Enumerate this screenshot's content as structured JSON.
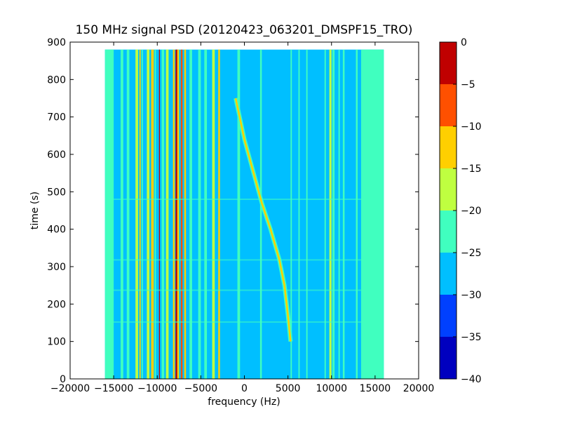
{
  "chart_data": {
    "type": "heatmap",
    "title": "150 MHz signal PSD (20120423_063201_DMSPF15_TRO)",
    "xlabel": "frequency (Hz)",
    "ylabel": "time (s)",
    "xlim": [
      -20000,
      20000
    ],
    "ylim": [
      0,
      900
    ],
    "xticks": [
      -20000,
      -15000,
      -10000,
      -5000,
      0,
      5000,
      10000,
      15000,
      20000
    ],
    "yticks": [
      0,
      100,
      200,
      300,
      400,
      500,
      600,
      700,
      800,
      900
    ],
    "data_extent": {
      "x": [
        -16000,
        16000
      ],
      "y": [
        0,
        880
      ]
    },
    "grid": false,
    "colorbar": {
      "range": [
        -40,
        0
      ],
      "ticks": [
        0,
        -5,
        -10,
        -15,
        -20,
        -25,
        -30,
        -35,
        -40
      ],
      "levels": [
        {
          "from": -40,
          "to": -35,
          "color": "#0000bf"
        },
        {
          "from": -35,
          "to": -30,
          "color": "#0040ff"
        },
        {
          "from": -30,
          "to": -25,
          "color": "#00bfff"
        },
        {
          "from": -25,
          "to": -20,
          "color": "#40ffbf"
        },
        {
          "from": -20,
          "to": -15,
          "color": "#bfff40"
        },
        {
          "from": -15,
          "to": -10,
          "color": "#ffcf00"
        },
        {
          "from": -10,
          "to": -5,
          "color": "#ff5000"
        },
        {
          "from": -5,
          "to": 0,
          "color": "#c00000"
        }
      ]
    },
    "background_level": -27.5,
    "vertical_lines": [
      {
        "x": -16000,
        "x2": -15000,
        "level": -22.5
      },
      {
        "x": -14200,
        "x2": -13900,
        "level": -22.5
      },
      {
        "x": -13500,
        "x2": -13200,
        "level": -22.5
      },
      {
        "x": -12500,
        "x2": -12200,
        "level": -17.5
      },
      {
        "x": -12050,
        "x2": -11900,
        "level": -12.5
      },
      {
        "x": -11800,
        "x2": -11650,
        "level": -22.5
      },
      {
        "x": -11200,
        "x2": -10900,
        "level": -17.5
      },
      {
        "x": -10700,
        "x2": -10400,
        "level": -12.5
      },
      {
        "x": -10300,
        "x2": -10150,
        "level": -22.5
      },
      {
        "x": -9800,
        "x2": -9700,
        "level": -2.5
      },
      {
        "x": -9500,
        "x2": -9200,
        "level": -22.5
      },
      {
        "x": -9000,
        "x2": -8700,
        "level": -17.5
      },
      {
        "x": -8200,
        "x2": -8000,
        "level": -12.5
      },
      {
        "x": -7900,
        "x2": -7700,
        "level": -2.5
      },
      {
        "x": -7700,
        "x2": -7500,
        "level": -12.5
      },
      {
        "x": -7300,
        "x2": -7100,
        "level": -7.5
      },
      {
        "x": -6900,
        "x2": -6700,
        "level": -12.5
      },
      {
        "x": -6300,
        "x2": -6000,
        "level": -22.5
      },
      {
        "x": -5300,
        "x2": -5000,
        "level": -22.5
      },
      {
        "x": -4600,
        "x2": -4300,
        "level": -22.5
      },
      {
        "x": -3700,
        "x2": -3400,
        "level": -17.5
      },
      {
        "x": -3000,
        "x2": -2800,
        "level": -12.5
      },
      {
        "x": -800,
        "x2": -500,
        "level": -22.5
      },
      {
        "x": 1800,
        "x2": 2000,
        "level": -22.5
      },
      {
        "x": 5300,
        "x2": 5450,
        "level": -22.5
      },
      {
        "x": 6200,
        "x2": 6350,
        "level": -22.5
      },
      {
        "x": 7100,
        "x2": 7250,
        "level": -22.5
      },
      {
        "x": 9200,
        "x2": 9350,
        "level": -22.5
      },
      {
        "x": 9750,
        "x2": 10000,
        "level": -17.5
      },
      {
        "x": 10100,
        "x2": 10350,
        "level": -22.5
      },
      {
        "x": 10800,
        "x2": 10950,
        "level": -22.5
      },
      {
        "x": 11300,
        "x2": 11500,
        "level": -22.5
      },
      {
        "x": 12800,
        "x2": 13000,
        "level": -22.5
      },
      {
        "x": 13400,
        "x2": 16000,
        "level": -22.5
      }
    ],
    "curve": {
      "level": -12.5,
      "points": [
        [
          -1000,
          750
        ],
        [
          0,
          640
        ],
        [
          1000,
          555
        ],
        [
          2000,
          470
        ],
        [
          3000,
          400
        ],
        [
          4000,
          320
        ],
        [
          4600,
          250
        ],
        [
          5000,
          170
        ],
        [
          5300,
          100
        ]
      ]
    },
    "horizontal_lines": [
      {
        "y": 318,
        "level": -22.5
      },
      {
        "y": 237,
        "level": -22.5
      },
      {
        "y": 152,
        "level": -22.5
      },
      {
        "y": 480,
        "level": -22.5
      }
    ]
  }
}
